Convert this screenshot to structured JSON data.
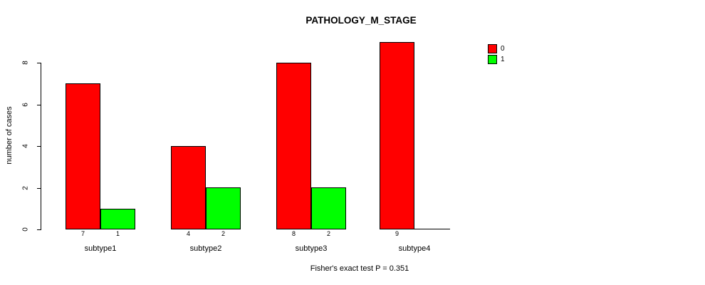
{
  "chart_data": {
    "type": "bar",
    "title": "PATHOLOGY_M_STAGE",
    "xlabel": "",
    "ylabel": "number of cases",
    "footnote": "Fisher's exact test P = 0.351",
    "categories": [
      "subtype1",
      "subtype2",
      "subtype3",
      "subtype4"
    ],
    "series": [
      {
        "name": "0",
        "color": "#ff0000",
        "values": [
          7,
          4,
          8,
          9
        ]
      },
      {
        "name": "1",
        "color": "#00ff00",
        "values": [
          1,
          2,
          2,
          0
        ]
      }
    ],
    "y_ticks": [
      0,
      2,
      4,
      6,
      8
    ],
    "ylim": [
      0,
      9
    ],
    "grid": false,
    "legend_position": "top-right",
    "bar_value_labels_shown": true,
    "colors": {
      "series_0": "#ff0000",
      "series_1": "#00ff00",
      "axis": "#000000",
      "background": "#ffffff"
    }
  }
}
